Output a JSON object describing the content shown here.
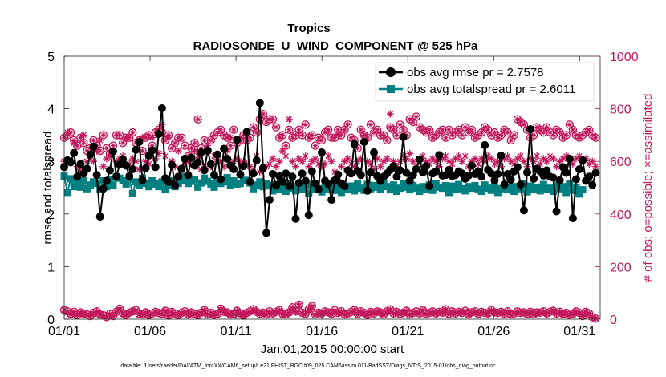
{
  "chart_data": {
    "type": "line",
    "title": "Tropics",
    "subtitle": "RADIOSONDE_U_WIND_COMPONENT @ 525 hPa",
    "xlabel": "Jan.01,2015 00:00:00 start",
    "ylabel": "rmse and totalspread",
    "ylabel_right": "# of obs: o=possible; ×=assimilated",
    "xlim": [
      1,
      32.2
    ],
    "ylim": [
      0,
      5
    ],
    "ylim_right": [
      0,
      1000
    ],
    "x_ticks": [
      1,
      6,
      11,
      16,
      21,
      26,
      31
    ],
    "x_tick_labels": [
      "01/01",
      "01/06",
      "01/11",
      "01/16",
      "01/21",
      "01/26",
      "01/31"
    ],
    "y_ticks": [
      0,
      1,
      2,
      3,
      4,
      5
    ],
    "y_ticks_right": [
      0,
      200,
      400,
      600,
      800,
      1000
    ],
    "legend_position": "top-right",
    "colors": {
      "rmse": "#000000",
      "spread": "#008080",
      "obs": "#c2185b"
    },
    "series": [
      {
        "name": "obs avg rmse pr = 2.7578",
        "axis": "left",
        "values": [
          2.89,
          3.02,
          2.98,
          3.16,
          2.71,
          2.95,
          2.77,
          2.86,
          3.13,
          3.28,
          2.74,
          1.95,
          2.48,
          2.63,
          2.83,
          3.19,
          2.71,
          2.94,
          3.04,
          2.92,
          2.72,
          2.85,
          3.22,
          3.37,
          2.64,
          2.87,
          3.11,
          3.21,
          2.89,
          3.52,
          4.01,
          2.68,
          2.61,
          2.93,
          2.54,
          2.71,
          2.86,
          3.05,
          2.74,
          3.07,
          2.92,
          2.98,
          3.17,
          2.83,
          3.21,
          2.95,
          2.74,
          3.13,
          2.66,
          3.24,
          3.05,
          2.92,
          2.85,
          3.41,
          2.75,
          2.91,
          3.56,
          2.61,
          2.77,
          3.02,
          4.11,
          2.87,
          1.64,
          2.27,
          2.76,
          2.54,
          2.72,
          2.61,
          2.77,
          2.53,
          2.71,
          1.91,
          2.59,
          2.77,
          2.63,
          1.98,
          2.81,
          2.58,
          2.47,
          3.17,
          2.63,
          2.57,
          2.27,
          2.64,
          2.75,
          2.58,
          2.53,
          2.83,
          2.77,
          3.33,
          2.82,
          2.74,
          3.37,
          2.44,
          2.79,
          3.17,
          2.72,
          2.63,
          2.71,
          2.77,
          2.84,
          2.91,
          2.71,
          2.83,
          3.46,
          2.78,
          2.63,
          2.74,
          2.85,
          3.04,
          2.79,
          2.91,
          2.53,
          2.77,
          2.81,
          3.12,
          2.73,
          2.74,
          2.84,
          2.72,
          2.74,
          2.81,
          2.77,
          2.67,
          2.73,
          2.92,
          2.76,
          2.81,
          2.71,
          3.31,
          2.84,
          2.77,
          2.64,
          2.76,
          3.11,
          2.56,
          2.76,
          2.65,
          2.81,
          2.89,
          2.56,
          2.07,
          2.79,
          3.61,
          2.67,
          2.86,
          2.81,
          2.73,
          2.83,
          2.71,
          2.69,
          2.05,
          2.64,
          2.89,
          2.78,
          3.05,
          1.92,
          2.66,
          2.85,
          3.02,
          2.63,
          2.71,
          2.55,
          2.78
        ]
      },
      {
        "name": "obs avg totalspread pr = 2.6011",
        "axis": "left",
        "values": [
          2.72,
          2.41,
          2.67,
          2.52,
          2.58,
          2.51,
          2.63,
          2.48,
          2.55,
          2.61,
          2.58,
          2.47,
          2.63,
          2.52,
          2.65,
          2.54,
          2.71,
          2.68,
          2.63,
          2.57,
          2.66,
          2.39,
          2.61,
          2.54,
          2.68,
          2.58,
          2.52,
          2.63,
          2.57,
          2.52,
          2.61,
          2.46,
          2.55,
          2.63,
          2.52,
          2.58,
          2.71,
          2.64,
          2.58,
          2.62,
          2.66,
          2.51,
          2.59,
          2.68,
          2.62,
          2.57,
          2.51,
          2.64,
          2.58,
          2.61,
          2.69,
          2.55,
          2.63,
          2.57,
          2.58,
          2.63,
          2.64,
          2.59,
          2.48,
          2.55,
          2.61,
          2.52,
          2.58,
          2.54,
          2.44,
          2.56,
          2.47,
          2.53,
          2.43,
          2.58,
          2.49,
          2.44,
          2.51,
          2.47,
          2.53,
          2.39,
          2.56,
          2.46,
          2.48,
          2.42,
          2.51,
          2.47,
          2.53,
          2.45,
          2.52,
          2.41,
          2.49,
          2.46,
          2.53,
          2.44,
          2.57,
          2.49,
          2.45,
          2.56,
          2.48,
          2.54,
          2.51,
          2.47,
          2.58,
          2.52,
          2.46,
          2.55,
          2.43,
          2.49,
          2.57,
          2.51,
          2.46,
          2.54,
          2.49,
          2.43,
          2.52,
          2.47,
          2.55,
          2.45,
          2.58,
          2.51,
          2.49,
          2.54,
          2.41,
          2.53,
          2.46,
          2.56,
          2.48,
          2.44,
          2.52,
          2.49,
          2.54,
          2.47,
          2.43,
          2.55,
          2.49,
          2.45,
          2.52,
          2.41,
          2.48,
          2.55,
          2.46,
          2.51,
          2.43,
          2.52,
          2.48,
          2.57,
          2.42,
          2.53,
          2.46,
          2.51,
          2.44,
          2.56,
          2.47,
          2.49,
          2.43,
          2.55,
          2.48,
          2.52,
          2.41,
          2.57,
          2.45,
          2.51,
          2.38,
          2.46
        ]
      },
      {
        "name": "obs possible",
        "axis": "right",
        "values": [
          690,
          700,
          710,
          680,
          660,
          690,
          670,
          640,
          650,
          680,
          660,
          640,
          700,
          650,
          630,
          660,
          700,
          700,
          670,
          690,
          690,
          710,
          670,
          680,
          640,
          690,
          700,
          660,
          710,
          720,
          710,
          680,
          700,
          650,
          670,
          690,
          690,
          660,
          620,
          650,
          670,
          760,
          650,
          680,
          640,
          680,
          700,
          710,
          720,
          700,
          690,
          660,
          720,
          670,
          680,
          700,
          680,
          690,
          730,
          710,
          760,
          780,
          750,
          760,
          760,
          730,
          690,
          700,
          660,
          720,
          690,
          700,
          720,
          700,
          740,
          690,
          700,
          660,
          690,
          680,
          710,
          720,
          690,
          690,
          720,
          700,
          720,
          740,
          690,
          680,
          650,
          720,
          700,
          690,
          740,
          710,
          720,
          700,
          700,
          680,
          730,
          720,
          700,
          740,
          720,
          700,
          760,
          750,
          770,
          730,
          720,
          710,
          720,
          690,
          700,
          710,
          720,
          690,
          720,
          700,
          710,
          720,
          700,
          730,
          710,
          720,
          690,
          700,
          710,
          730,
          720,
          700,
          710,
          690,
          700,
          720,
          710,
          680,
          700,
          760,
          750,
          740,
          720,
          690,
          700,
          730,
          720,
          710,
          730,
          710,
          700,
          720,
          710,
          690,
          700,
          740,
          720,
          700,
          690,
          700,
          710,
          720,
          700,
          690
        ]
      },
      {
        "name": "obs assimilated",
        "axis": "right",
        "values": [
          600,
          710,
          600,
          670,
          580,
          560,
          700,
          600,
          620,
          600,
          640,
          680,
          580,
          610,
          620,
          640,
          600,
          610,
          620,
          690,
          590,
          610,
          600,
          570,
          690,
          600,
          590,
          690,
          610,
          630,
          740,
          620,
          690,
          600,
          580,
          640,
          560,
          590,
          600,
          620,
          640,
          620,
          570,
          580,
          660,
          580,
          620,
          600,
          600,
          580,
          640,
          690,
          600,
          610,
          590,
          600,
          590,
          580,
          560,
          620,
          560,
          580,
          580,
          590,
          610,
          580,
          600,
          640,
          620,
          760,
          600,
          580,
          610,
          600,
          620,
          580,
          600,
          610,
          590,
          580,
          590,
          620,
          600,
          560,
          700,
          580,
          600,
          610,
          590,
          580,
          600,
          610,
          700,
          600,
          590,
          570,
          610,
          580,
          600,
          610,
          780,
          600,
          580,
          600,
          620,
          610,
          630,
          600,
          580,
          600,
          620,
          600,
          590,
          610,
          600,
          580,
          610,
          620,
          600,
          590,
          610,
          620,
          600,
          620,
          580,
          600,
          610,
          590,
          610,
          600,
          620,
          610,
          590,
          600,
          580,
          610,
          620,
          600,
          590,
          610,
          620,
          600,
          580,
          610,
          600,
          620,
          590,
          610,
          600,
          620,
          610,
          580,
          600,
          610,
          620,
          600,
          590,
          610,
          620,
          600,
          610,
          590,
          600,
          580
        ]
      },
      {
        "name": "obs possible (low)",
        "axis": "right",
        "values": [
          35,
          30,
          20,
          28,
          15,
          26,
          22,
          18,
          12,
          24,
          30,
          18,
          15,
          8,
          20,
          12,
          28,
          40,
          22,
          15,
          25,
          30,
          35,
          20,
          18,
          26,
          15,
          22,
          28,
          24,
          20,
          32,
          14,
          28,
          22,
          15,
          24,
          30,
          18,
          26,
          20,
          15,
          25,
          35,
          18,
          24,
          16,
          20,
          40,
          28,
          26,
          18,
          20,
          32,
          22,
          14,
          24,
          30,
          38,
          28,
          20,
          25,
          18,
          30,
          22,
          28,
          35,
          20,
          18,
          26,
          45,
          30,
          55,
          24,
          20,
          38,
          50,
          18,
          25,
          22,
          30,
          26,
          20,
          34,
          24,
          30,
          18,
          22,
          28,
          35,
          20,
          30,
          24,
          16,
          28,
          22,
          30,
          26,
          18,
          30,
          38,
          22,
          28,
          20,
          25,
          32,
          18,
          24,
          30,
          22,
          35,
          20,
          24,
          30,
          22,
          28,
          25,
          38,
          20,
          30,
          22,
          28,
          24,
          32,
          18,
          26,
          30,
          20,
          28,
          24,
          22,
          35,
          26,
          24,
          28,
          20,
          30,
          18,
          22,
          30,
          24,
          26,
          20,
          28,
          18,
          26,
          25,
          30,
          22,
          28,
          32,
          22,
          28,
          20,
          24,
          16,
          20,
          30,
          24,
          12,
          28,
          22,
          8,
          2
        ]
      },
      {
        "name": "obs assimilated (low)",
        "axis": "right",
        "values": [
          35,
          25,
          18,
          22,
          15,
          22,
          18,
          16,
          12,
          20,
          28,
          16,
          14,
          8,
          18,
          12,
          26,
          36,
          20,
          14,
          22,
          28,
          32,
          18,
          16,
          24,
          14,
          20,
          26,
          22,
          18,
          30,
          12,
          26,
          20,
          14,
          22,
          28,
          16,
          24,
          18,
          14,
          22,
          32,
          16,
          22,
          14,
          18,
          36,
          26,
          24,
          16,
          18,
          30,
          20,
          12,
          22,
          28,
          34,
          26,
          18,
          22,
          16,
          28,
          20,
          26,
          32,
          18,
          16,
          24,
          40,
          28,
          50,
          22,
          18,
          34,
          46,
          16,
          22,
          20,
          28,
          24,
          18,
          30,
          22,
          28,
          16,
          20,
          26,
          32,
          18,
          28,
          22,
          14,
          26,
          20,
          28,
          24,
          16,
          28,
          34,
          20,
          26,
          18,
          22,
          30,
          16,
          22,
          28,
          20,
          32,
          18,
          22,
          28,
          20,
          26,
          22,
          34,
          18,
          28,
          20,
          26,
          22,
          30,
          16,
          24,
          28,
          18,
          26,
          22,
          20,
          32,
          24,
          22,
          26,
          18,
          28,
          16,
          20,
          28,
          22,
          24,
          18,
          26,
          16,
          24,
          22,
          28,
          20,
          26,
          30,
          20,
          26,
          18,
          22,
          14,
          18,
          28,
          22,
          10,
          26,
          20,
          6,
          2
        ]
      }
    ],
    "legend": [
      "obs avg rmse pr = 2.7578",
      "obs avg totalspread pr = 2.6011"
    ],
    "footer": "data file: /Users/raeder/DAI/ATM_forcXX/CAM6_setup/f.e21.FHIST_BGC.f09_025.CAM6assim.011/BadSST/Diags_NTrS_2015-01/obs_diag_output.nc"
  }
}
